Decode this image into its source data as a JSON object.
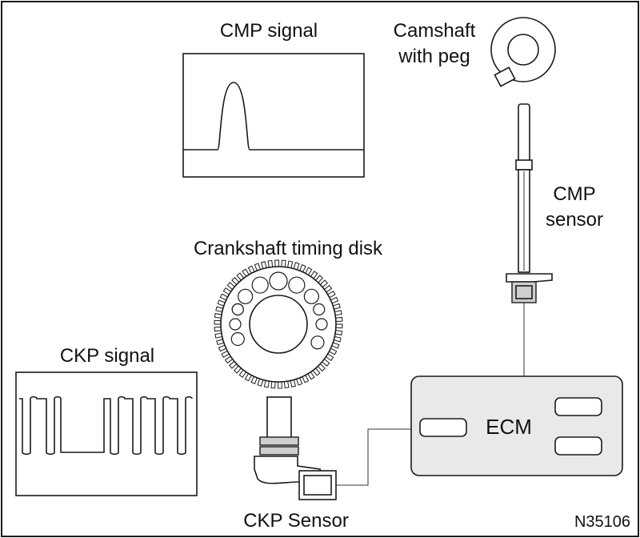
{
  "labels": {
    "cmp_signal": "CMP signal",
    "camshaft_line1": "Camshaft",
    "camshaft_line2": "with peg",
    "cmp_sensor_line1": "CMP",
    "cmp_sensor_line2": "sensor",
    "crank_disk": "Crankshaft timing disk",
    "ckp_signal": "CKP signal",
    "ecm": "ECM",
    "ckp_sensor": "CKP Sensor",
    "figure_code": "N35106"
  },
  "colors": {
    "line": "#1a1a1a",
    "background": "#ffffff",
    "panel": "#e9e9e9"
  },
  "icons": {
    "camshaft": "camshaft-with-peg-icon",
    "cmp_sensor": "cmp-sensor-icon",
    "crank_disk": "crankshaft-timing-disk-icon",
    "ckp_sensor": "ckp-sensor-icon",
    "ecm": "ecm-box-icon"
  }
}
